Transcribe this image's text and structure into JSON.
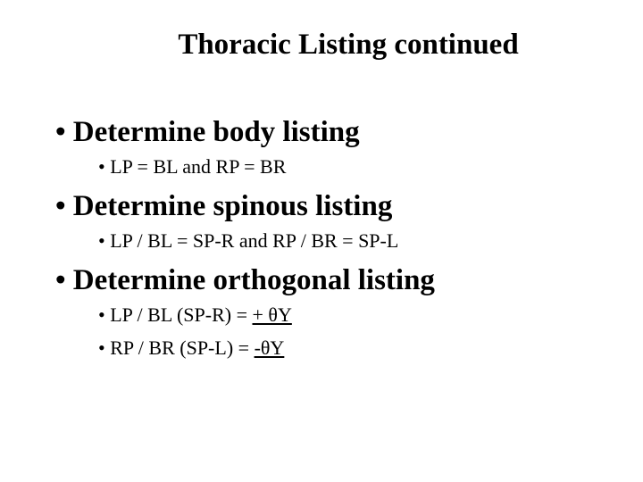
{
  "title": "Thoracic Listing continued",
  "items": [
    {
      "level": 1,
      "text": "• Determine body listing"
    },
    {
      "level": 2,
      "text": "• LP = BL  and  RP = BR"
    },
    {
      "level": 1,
      "text": "• Determine spinous listing"
    },
    {
      "level": 2,
      "text": "• LP / BL = SP-R  and RP / BR = SP-L"
    },
    {
      "level": 1,
      "text": "• Determine orthogonal listing"
    },
    {
      "level": 2,
      "prefix": "• LP / BL (SP-R) = ",
      "underline_html": "+ θY"
    },
    {
      "level": 2,
      "prefix": "• RP / BR (SP-L) = ",
      "underline_html": "-θY"
    }
  ]
}
